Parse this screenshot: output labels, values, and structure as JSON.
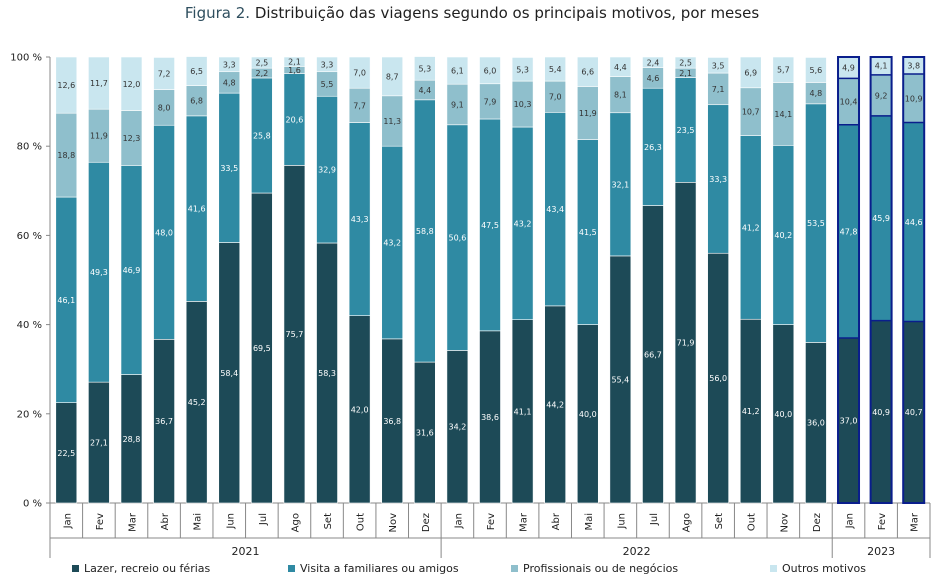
{
  "title": {
    "figure": "Figura 2.",
    "text": "Distribuição das viagens segundo os principais motivos, por meses"
  },
  "chart_data": {
    "type": "bar",
    "stacked": true,
    "percent": true,
    "categories": [
      "Jan",
      "Fev",
      "Mar",
      "Abr",
      "Mai",
      "Jun",
      "Jul",
      "Ago",
      "Set",
      "Out",
      "Nov",
      "Dez",
      "Jan",
      "Fev",
      "Mar",
      "Abr",
      "Mai",
      "Jun",
      "Jul",
      "Ago",
      "Set",
      "Out",
      "Nov",
      "Dez",
      "Jan",
      "Fev",
      "Mar"
    ],
    "groups": [
      {
        "label": "2021",
        "count": 12
      },
      {
        "label": "2022",
        "count": 12
      },
      {
        "label": "2023",
        "count": 3
      }
    ],
    "highlighted_group": "2023",
    "series": [
      {
        "name": "Lazer, recreio ou férias",
        "color": "#1d4a57",
        "values": [
          22.5,
          27.1,
          28.8,
          36.7,
          45.2,
          58.4,
          69.5,
          75.7,
          58.3,
          42.0,
          36.8,
          31.6,
          34.2,
          38.6,
          41.1,
          44.2,
          40.0,
          55.4,
          66.7,
          71.9,
          56.0,
          41.2,
          40.0,
          36.0,
          37.0,
          40.9,
          40.7
        ]
      },
      {
        "name": "Visita a familiares ou amigos",
        "color": "#2f8aa3",
        "values": [
          46.1,
          49.3,
          46.9,
          48.0,
          41.6,
          33.5,
          25.8,
          20.6,
          32.9,
          43.3,
          43.2,
          58.8,
          50.6,
          47.5,
          43.2,
          43.4,
          41.5,
          32.1,
          26.3,
          23.5,
          33.3,
          41.2,
          40.2,
          53.5,
          47.8,
          45.9,
          44.6
        ]
      },
      {
        "name": "Profissionais ou de negócios",
        "color": "#8fbfcc",
        "values": [
          18.8,
          11.9,
          12.3,
          8.0,
          6.8,
          4.8,
          2.2,
          1.6,
          5.5,
          7.7,
          11.3,
          4.4,
          9.1,
          7.9,
          10.3,
          7.0,
          11.9,
          8.1,
          4.6,
          2.1,
          7.1,
          10.7,
          14.1,
          4.8,
          10.4,
          9.2,
          10.9
        ]
      },
      {
        "name": "Outros motivos",
        "color": "#c9e6ef",
        "values": [
          12.6,
          11.7,
          12.0,
          7.2,
          6.5,
          3.3,
          2.5,
          2.1,
          3.3,
          7.0,
          8.7,
          5.3,
          6.1,
          6.0,
          5.3,
          5.4,
          6.6,
          4.4,
          2.4,
          2.5,
          3.5,
          6.9,
          5.7,
          5.6,
          4.9,
          4.1,
          3.8
        ]
      }
    ],
    "y_ticks": [
      "0 %",
      "20 %",
      "40 %",
      "60 %",
      "80 %",
      "100 %"
    ],
    "ylim": [
      0,
      100
    ],
    "grid": false,
    "legend_position": "bottom"
  },
  "colors": {
    "label_dark": "#ffffff",
    "label_light": "#333333",
    "highlight_border": "#0a1e8c",
    "axis": "#888888"
  }
}
